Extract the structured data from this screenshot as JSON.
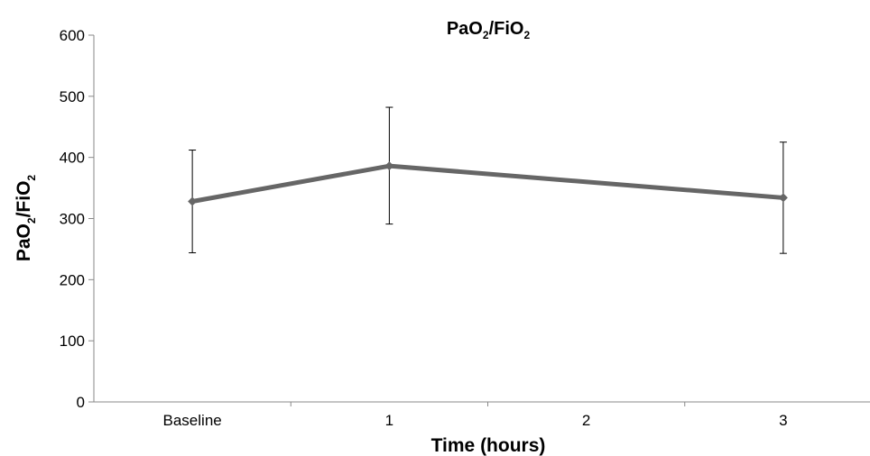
{
  "chart_data": {
    "type": "line",
    "title": {
      "main1": "PaO",
      "sub1": "2",
      "main2": "/FiO",
      "sub2": "2"
    },
    "xlabel": "Time (hours)",
    "ylabel": {
      "main1": "PaO",
      "sub1": "2",
      "main2": "/FiO",
      "sub2": "2"
    },
    "categories": [
      "Baseline",
      "1",
      "2",
      "3"
    ],
    "ylim": [
      0,
      600
    ],
    "yticks": [
      "0",
      "100",
      "200",
      "300",
      "400",
      "500",
      "600"
    ],
    "grid": false,
    "series": [
      {
        "points": [
          {
            "x": "Baseline",
            "y": 328,
            "err_low": 244,
            "err_high": 412
          },
          {
            "x": "1",
            "y": 386,
            "err_low": 291,
            "err_high": 482
          },
          {
            "x": "3",
            "y": 334,
            "err_low": 243,
            "err_high": 425
          }
        ],
        "color": "#666666"
      }
    ]
  }
}
